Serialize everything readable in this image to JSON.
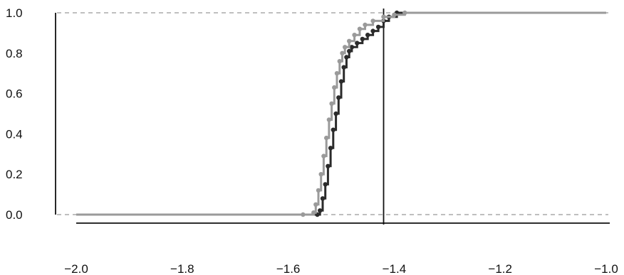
{
  "chart_data": {
    "type": "line",
    "title": "",
    "xlabel": "",
    "ylabel": "",
    "xlim": [
      -2.0,
      -1.0
    ],
    "ylim": [
      0.0,
      1.0
    ],
    "x_ticks": [
      -2.0,
      -1.8,
      -1.6,
      -1.4,
      -1.2,
      -1.0
    ],
    "x_tick_labels": [
      "−2.0",
      "−1.8",
      "−1.6",
      "−1.4",
      "−1.2",
      "−1.0"
    ],
    "y_ticks": [
      0.0,
      0.2,
      0.4,
      0.6,
      0.8,
      1.0
    ],
    "y_tick_labels": [
      "0.0",
      "0.2",
      "0.4",
      "0.6",
      "0.8",
      "1.0"
    ],
    "reference_lines": {
      "horizontal": [
        0.0,
        1.0
      ],
      "vertical": [
        -1.42
      ]
    },
    "grid": false,
    "legend": "none",
    "series": [
      {
        "color": "#2b2b2b",
        "points": [
          [
            -2.0,
            0.0
          ],
          [
            -1.545,
            0.0
          ],
          [
            -1.54,
            0.02
          ],
          [
            -1.535,
            0.08
          ],
          [
            -1.53,
            0.15
          ],
          [
            -1.525,
            0.24
          ],
          [
            -1.52,
            0.33
          ],
          [
            -1.515,
            0.42
          ],
          [
            -1.51,
            0.5
          ],
          [
            -1.505,
            0.58
          ],
          [
            -1.5,
            0.66
          ],
          [
            -1.495,
            0.73
          ],
          [
            -1.49,
            0.78
          ],
          [
            -1.485,
            0.81
          ],
          [
            -1.48,
            0.83
          ],
          [
            -1.47,
            0.85
          ],
          [
            -1.46,
            0.87
          ],
          [
            -1.45,
            0.89
          ],
          [
            -1.44,
            0.91
          ],
          [
            -1.43,
            0.93
          ],
          [
            -1.42,
            0.96
          ],
          [
            -1.41,
            0.98
          ],
          [
            -1.395,
            1.0
          ],
          [
            -1.0,
            1.0
          ]
        ]
      },
      {
        "color": "#9a9a9a",
        "points": [
          [
            -2.0,
            0.0
          ],
          [
            -1.572,
            0.0
          ],
          [
            -1.552,
            0.01
          ],
          [
            -1.548,
            0.05
          ],
          [
            -1.543,
            0.12
          ],
          [
            -1.538,
            0.2
          ],
          [
            -1.533,
            0.29
          ],
          [
            -1.528,
            0.38
          ],
          [
            -1.523,
            0.47
          ],
          [
            -1.518,
            0.55
          ],
          [
            -1.513,
            0.63
          ],
          [
            -1.508,
            0.7
          ],
          [
            -1.503,
            0.76
          ],
          [
            -1.498,
            0.8
          ],
          [
            -1.493,
            0.83
          ],
          [
            -1.485,
            0.86
          ],
          [
            -1.475,
            0.89
          ],
          [
            -1.465,
            0.92
          ],
          [
            -1.455,
            0.94
          ],
          [
            -1.44,
            0.96
          ],
          [
            -1.42,
            0.98
          ],
          [
            -1.4,
            0.99
          ],
          [
            -1.38,
            1.0
          ],
          [
            -1.0,
            1.0
          ]
        ]
      }
    ],
    "colors": {
      "axis": "#111111",
      "reference": "#aaaaaa"
    }
  }
}
